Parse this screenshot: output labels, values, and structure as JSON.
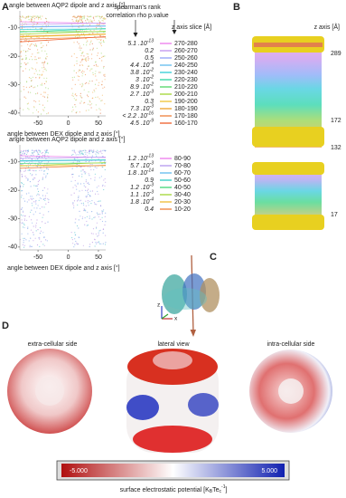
{
  "panel_labels": [
    "A",
    "B",
    "C",
    "D"
  ],
  "panel_a": {
    "plots": [
      {
        "y_label": "angle between AQP2 dipole and z axis [°]",
        "x_label": "angle between DEX dipole and z axis [°]",
        "xlim": [
          -80,
          62
        ],
        "xticks": [
          -50,
          0,
          50
        ],
        "ylim": [
          -4,
          -41
        ],
        "yticks": [
          -10,
          -20,
          -30,
          -40
        ],
        "cloud_colors": [
          "#f59a5a",
          "#9fd870",
          "#f5b860",
          "#e07848",
          "#b6dc80"
        ]
      },
      {
        "y_label": "angle between AQP2 dipole and z axis [°]",
        "x_label": "angle between DEX dipole and z axis [°]",
        "xlim": [
          -80,
          62
        ],
        "xticks": [
          -50,
          0,
          50
        ],
        "ylim": [
          -4,
          -41
        ],
        "yticks": [
          -10,
          -20,
          -30,
          -40
        ],
        "cloud_colors": [
          "#7aa0e8",
          "#b08ae0",
          "#60c8d0",
          "#8fb0f0",
          "#c0a0e8"
        ]
      }
    ],
    "stat_header": [
      "spearman's rank",
      "correlation rho p.value"
    ],
    "slice_header": "z axis slice [Å]",
    "legends": [
      {
        "p_values": [
          {
            "base": "5.1 .10",
            "exp": "-13"
          },
          {
            "text": "0.2"
          },
          {
            "text": "0.5"
          },
          {
            "base": "4.4 .10",
            "exp": "-4"
          },
          {
            "base": "3.8 .10",
            "exp": "-2"
          },
          {
            "base": "3 .10",
            "exp": "-2"
          },
          {
            "base": "8.9 .10",
            "exp": "-2"
          },
          {
            "base": "2.7 .10",
            "exp": "-3"
          },
          {
            "text": "0.3"
          },
          {
            "base": "7.3 .10",
            "exp": "-3"
          },
          {
            "base": "< 2.2 .10",
            "exp": "-16"
          },
          {
            "base": "4.5 .10",
            "exp": "-9"
          }
        ],
        "slices": [
          {
            "label": "270-280",
            "color": "#ee82ee"
          },
          {
            "label": "260-270",
            "color": "#c49af0"
          },
          {
            "label": "250-260",
            "color": "#9aa8f8"
          },
          {
            "label": "240-250",
            "color": "#6cc0f0"
          },
          {
            "label": "230-240",
            "color": "#3ecfd8"
          },
          {
            "label": "220-230",
            "color": "#3cd8a8"
          },
          {
            "label": "210-220",
            "color": "#5cd870"
          },
          {
            "label": "200-210",
            "color": "#a8d840"
          },
          {
            "label": "190-200",
            "color": "#f0c840"
          },
          {
            "label": "180-190",
            "color": "#f0a838"
          },
          {
            "label": "170-180",
            "color": "#f08848"
          },
          {
            "label": "160-170",
            "color": "#f06838"
          }
        ]
      },
      {
        "p_values": [
          {
            "base": "1.2 .10",
            "exp": "-13"
          },
          {
            "base": "5.7 .10",
            "exp": "-3"
          },
          {
            "base": "1.8 .10",
            "exp": "-14"
          },
          {
            "text": "0.9"
          },
          {
            "base": "1.2 .10",
            "exp": "-3"
          },
          {
            "base": "1.1 .10",
            "exp": "-3"
          },
          {
            "base": "1.8 .10",
            "exp": "-4"
          },
          {
            "text": "0.4"
          }
        ],
        "slices": [
          {
            "label": "80-90",
            "color": "#ee82ee"
          },
          {
            "label": "70-80",
            "color": "#b8a0f0"
          },
          {
            "label": "60-70",
            "color": "#6cc0f0"
          },
          {
            "label": "50-60",
            "color": "#3ecfc8"
          },
          {
            "label": "40-50",
            "color": "#4cd880"
          },
          {
            "label": "30-40",
            "color": "#a8d840"
          },
          {
            "label": "20-30",
            "color": "#f0c040"
          },
          {
            "label": "10-20",
            "color": "#f08848"
          }
        ]
      }
    ]
  },
  "panel_b": {
    "axis_label": "z axis [Å]",
    "levels": [
      289,
      172,
      132,
      17
    ]
  },
  "panel_c": {
    "axis_labels": [
      "z",
      "x"
    ]
  },
  "panel_d": {
    "views": [
      "extra-cellular side",
      "lateral view",
      "intra-cellular side"
    ],
    "colorbar": {
      "min_label": "-5.000",
      "max_label": "5.000",
      "caption": {
        "base": "surface electrostatic potential [K",
        "sub1": "B",
        "mid": "Te",
        "sub2": "c",
        "sup": "-1",
        "end": "]"
      }
    }
  }
}
